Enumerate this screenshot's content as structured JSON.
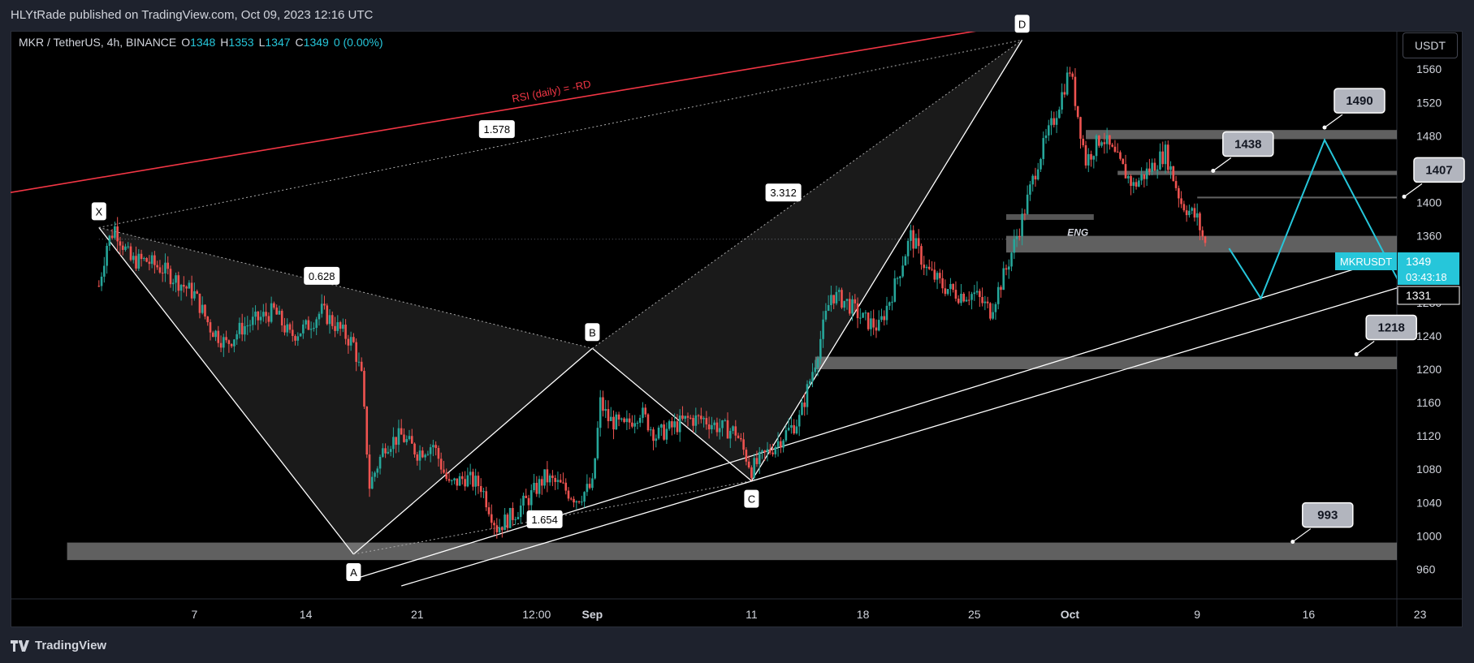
{
  "header": {
    "published": "HLYtRade published on TradingView.com, Oct 09, 2023 12:16 UTC"
  },
  "legend": {
    "symbol": "MKR / TetherUS, 4h, BINANCE",
    "o_label": "O",
    "o_val": "1348",
    "h_label": "H",
    "h_val": "1353",
    "l_label": "L",
    "l_val": "1347",
    "c_label": "C",
    "c_val": "1349",
    "change": "0 (0.00%)"
  },
  "currency_button": "USDT",
  "footer": {
    "brand": "TradingView"
  },
  "colors": {
    "up": "#26a69a",
    "down": "#ef5350",
    "accent": "#26c6da",
    "rsi_line": "#f23645",
    "zone": "#808080"
  },
  "chart_data": {
    "type": "candlestick",
    "ylim": [
      940,
      1605
    ],
    "y_ticks": [
      960,
      1000,
      1040,
      1080,
      1120,
      1160,
      1200,
      1240,
      1280,
      1320,
      1360,
      1400,
      1440,
      1480,
      1520,
      1560
    ],
    "x_ticks": [
      "7",
      "14",
      "21",
      "12:00",
      "Sep",
      "11",
      "18",
      "25",
      "Oct",
      "9",
      "16",
      "23"
    ],
    "x_tick_dates": [
      "2023-08-07",
      "2023-08-14",
      "2023-08-21",
      "2023-08-28T12:00",
      "2023-09-01",
      "2023-09-11",
      "2023-09-18",
      "2023-09-25",
      "2023-10-01",
      "2023-10-09",
      "2023-10-16",
      "2023-10-23"
    ],
    "price_path": [
      [
        "2023-08-01",
        1300
      ],
      [
        "2023-08-01T12:00",
        1350
      ],
      [
        "2023-08-02",
        1370
      ],
      [
        "2023-08-03",
        1330
      ],
      [
        "2023-08-04",
        1330
      ],
      [
        "2023-08-05",
        1320
      ],
      [
        "2023-08-07",
        1290
      ],
      [
        "2023-08-08",
        1250
      ],
      [
        "2023-08-09",
        1230
      ],
      [
        "2023-08-10",
        1250
      ],
      [
        "2023-08-11",
        1260
      ],
      [
        "2023-08-12",
        1270
      ],
      [
        "2023-08-13",
        1240
      ],
      [
        "2023-08-14",
        1250
      ],
      [
        "2023-08-15",
        1270
      ],
      [
        "2023-08-16",
        1250
      ],
      [
        "2023-08-17",
        1230
      ],
      [
        "2023-08-17T12:00",
        1190
      ],
      [
        "2023-08-18",
        1060
      ],
      [
        "2023-08-19",
        1110
      ],
      [
        "2023-08-20",
        1120
      ],
      [
        "2023-08-21",
        1100
      ],
      [
        "2023-08-22",
        1110
      ],
      [
        "2023-08-23",
        1060
      ],
      [
        "2023-08-24",
        1070
      ],
      [
        "2023-08-25",
        1060
      ],
      [
        "2023-08-26",
        1010
      ],
      [
        "2023-08-27",
        1025
      ],
      [
        "2023-08-28",
        1045
      ],
      [
        "2023-08-29",
        1070
      ],
      [
        "2023-08-30",
        1060
      ],
      [
        "2023-08-31",
        1045
      ],
      [
        "2023-09-01",
        1060
      ],
      [
        "2023-09-01T12:00",
        1160
      ],
      [
        "2023-09-02",
        1140
      ],
      [
        "2023-09-03",
        1130
      ],
      [
        "2023-09-04",
        1150
      ],
      [
        "2023-09-05",
        1120
      ],
      [
        "2023-09-06",
        1130
      ],
      [
        "2023-09-07",
        1140
      ],
      [
        "2023-09-08",
        1140
      ],
      [
        "2023-09-09",
        1130
      ],
      [
        "2023-09-10",
        1125
      ],
      [
        "2023-09-11",
        1080
      ],
      [
        "2023-09-12",
        1100
      ],
      [
        "2023-09-13",
        1120
      ],
      [
        "2023-09-14",
        1140
      ],
      [
        "2023-09-15",
        1210
      ],
      [
        "2023-09-16",
        1290
      ],
      [
        "2023-09-17",
        1280
      ],
      [
        "2023-09-18",
        1260
      ],
      [
        "2023-09-19",
        1250
      ],
      [
        "2023-09-20",
        1300
      ],
      [
        "2023-09-21",
        1360
      ],
      [
        "2023-09-22",
        1320
      ],
      [
        "2023-09-23",
        1300
      ],
      [
        "2023-09-24",
        1290
      ],
      [
        "2023-09-25",
        1290
      ],
      [
        "2023-09-26",
        1270
      ],
      [
        "2023-09-27",
        1320
      ],
      [
        "2023-09-28",
        1380
      ],
      [
        "2023-09-29",
        1450
      ],
      [
        "2023-09-30",
        1500
      ],
      [
        "2023-10-01",
        1560
      ],
      [
        "2023-10-02",
        1450
      ],
      [
        "2023-10-03",
        1480
      ],
      [
        "2023-10-04",
        1450
      ],
      [
        "2023-10-05",
        1420
      ],
      [
        "2023-10-06",
        1440
      ],
      [
        "2023-10-07",
        1460
      ],
      [
        "2023-10-08",
        1400
      ],
      [
        "2023-10-09",
        1380
      ],
      [
        "2023-10-09T12:00",
        1349
      ]
    ],
    "pattern_points": [
      {
        "label": "X",
        "date": "2023-08-01",
        "price": 1370
      },
      {
        "label": "A",
        "date": "2023-08-17",
        "price": 978
      },
      {
        "label": "B",
        "date": "2023-09-01",
        "price": 1225
      },
      {
        "label": "C",
        "date": "2023-09-11",
        "price": 1066
      },
      {
        "label": "D",
        "date": "2023-09-28",
        "price": 1595
      }
    ],
    "ratios": [
      {
        "label": "1.578",
        "date": "2023-08-26",
        "price": 1488
      },
      {
        "label": "0.628",
        "date": "2023-08-15",
        "price": 1312
      },
      {
        "label": "3.312",
        "date": "2023-09-13",
        "price": 1412
      },
      {
        "label": "1.654",
        "date": "2023-08-29",
        "price": 1020
      }
    ],
    "rsi_label": "RSI (daily) = -RD",
    "zones": [
      {
        "from_date": "2023-10-02",
        "to_date": "2023-10-29",
        "top": 1487,
        "bottom": 1476
      },
      {
        "from_date": "2023-10-04",
        "to_date": "2023-10-29",
        "top": 1438,
        "bottom": 1433
      },
      {
        "from_date": "2023-10-09",
        "to_date": "2023-10-29",
        "top": 1407,
        "bottom": 1405
      },
      {
        "from_date": "2023-09-27",
        "to_date": "2023-10-29",
        "top": 1360,
        "bottom": 1340
      },
      {
        "from_date": "2023-09-15",
        "to_date": "2023-10-29",
        "top": 1215,
        "bottom": 1200
      },
      {
        "from_date": "2023-07-30",
        "to_date": "2023-10-29",
        "top": 992,
        "bottom": 971
      }
    ],
    "eng_label": "ENG",
    "callouts": [
      {
        "label": "1490",
        "price": 1490,
        "date": "2023-10-17"
      },
      {
        "label": "1438",
        "price": 1438,
        "date": "2023-10-10"
      },
      {
        "label": "1407",
        "price": 1407,
        "date": "2023-10-22"
      },
      {
        "label": "1218",
        "price": 1218,
        "date": "2023-10-19"
      },
      {
        "label": "993",
        "price": 993,
        "date": "2023-10-15"
      }
    ],
    "projection": [
      [
        "2023-10-11",
        1345
      ],
      [
        "2023-10-13",
        1285
      ],
      [
        "2023-10-17",
        1475
      ],
      [
        "2023-10-24",
        1220
      ]
    ],
    "price_label": {
      "symbol": "MKRUSDT",
      "price": "1349",
      "countdown": "03:43:18",
      "low": "1331"
    }
  }
}
